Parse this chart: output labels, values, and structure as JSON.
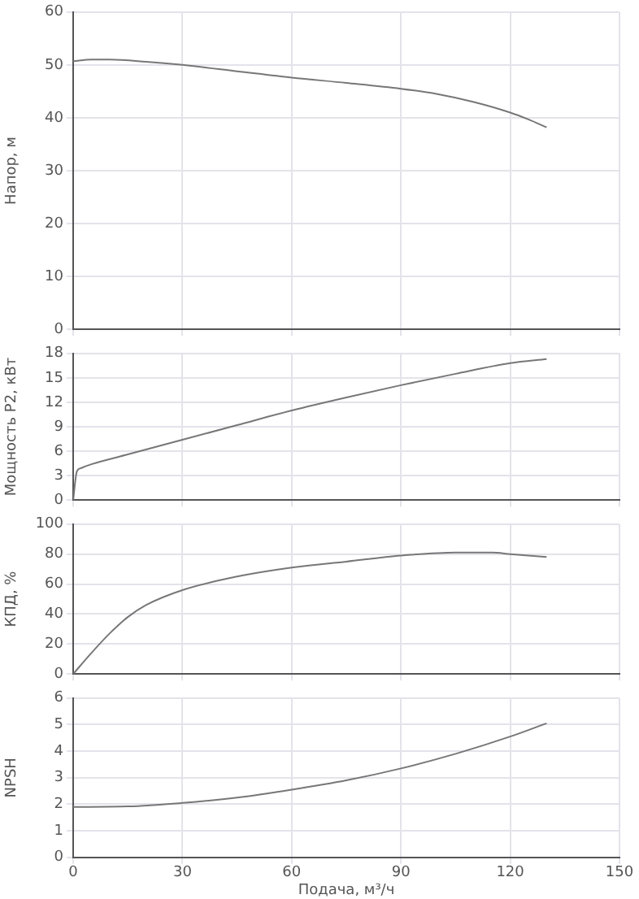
{
  "chart_data": [
    {
      "type": "line",
      "ylabel": "Напор, м",
      "x": [
        0,
        5,
        10,
        20,
        30,
        45,
        60,
        75,
        90,
        100,
        110,
        120,
        125,
        130
      ],
      "values": [
        50.7,
        51,
        51,
        50.6,
        50,
        48.8,
        47.6,
        46.6,
        45.5,
        44.5,
        43,
        41,
        39.7,
        38.2
      ],
      "color": "#777777",
      "xlim": [
        0,
        150
      ],
      "xticks": [
        0,
        30,
        60,
        90,
        120,
        150
      ],
      "ylim": [
        0,
        60
      ],
      "yticks": [
        0,
        10,
        20,
        30,
        40,
        50,
        60
      ],
      "grid": true,
      "tick_labels": "y",
      "marker": "none"
    },
    {
      "type": "line",
      "ylabel": "Мощность P2, кВт",
      "x": [
        0,
        1,
        2,
        5,
        15,
        30,
        45,
        60,
        75,
        90,
        105,
        120,
        130
      ],
      "values": [
        0,
        3.5,
        3.9,
        4.4,
        5.6,
        7.4,
        9.2,
        11,
        12.6,
        14.1,
        15.5,
        16.8,
        17.3
      ],
      "color": "#777777",
      "xlim": [
        0,
        150
      ],
      "xticks": [
        0,
        30,
        60,
        90,
        120,
        150
      ],
      "ylim": [
        0,
        18
      ],
      "yticks": [
        0,
        3,
        6,
        9,
        12,
        15,
        18
      ],
      "grid": true,
      "tick_labels": "y",
      "marker": "none"
    },
    {
      "type": "line",
      "ylabel": "КПД, %",
      "x": [
        0,
        5,
        10,
        15,
        20,
        30,
        45,
        60,
        75,
        90,
        105,
        115,
        120,
        130
      ],
      "values": [
        0,
        14,
        27,
        38,
        46,
        56,
        65,
        71,
        75,
        79,
        81,
        81,
        80,
        78
      ],
      "color": "#777777",
      "xlim": [
        0,
        150
      ],
      "xticks": [
        0,
        30,
        60,
        90,
        120,
        150
      ],
      "ylim": [
        0,
        100
      ],
      "yticks": [
        0,
        20,
        40,
        60,
        80,
        100
      ],
      "grid": true,
      "tick_labels": "y",
      "marker": "none"
    },
    {
      "type": "line",
      "xlabel": "Подача, м³/ч",
      "ylabel": "NPSH",
      "x": [
        0,
        15,
        30,
        45,
        60,
        75,
        90,
        105,
        120,
        130
      ],
      "values": [
        1.9,
        1.92,
        2.05,
        2.25,
        2.55,
        2.9,
        3.35,
        3.9,
        4.55,
        5.05
      ],
      "color": "#777777",
      "xlim": [
        0,
        150
      ],
      "xticks": [
        0,
        30,
        60,
        90,
        120,
        150
      ],
      "ylim": [
        0,
        6
      ],
      "yticks": [
        0,
        1,
        2,
        3,
        4,
        5,
        6
      ],
      "grid": true,
      "marker": "none"
    }
  ]
}
